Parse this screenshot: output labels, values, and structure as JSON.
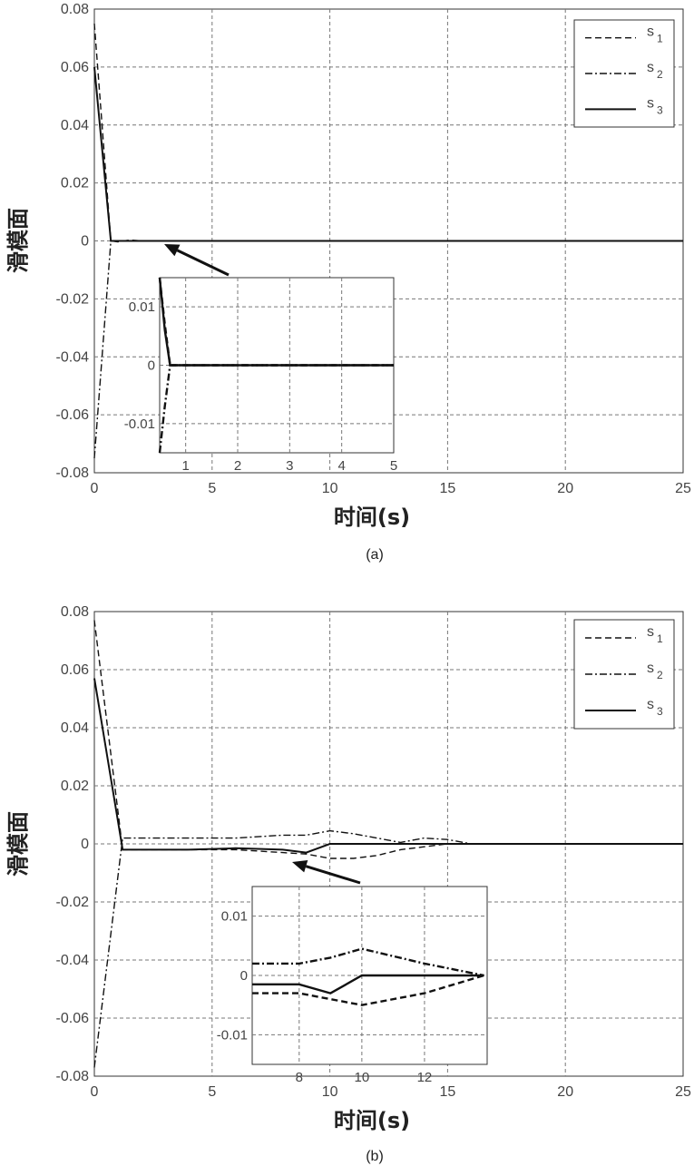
{
  "chart_data": [
    {
      "type": "line",
      "caption": "(a)",
      "xlabel": "时间(s)",
      "ylabel": "滑模面",
      "xlim": [
        0,
        25
      ],
      "ylim": [
        -0.08,
        0.08
      ],
      "xticks": [
        "0",
        "5",
        "10",
        "15",
        "20",
        "25"
      ],
      "yticks": [
        "-0.08",
        "-0.06",
        "-0.04",
        "-0.02",
        "0",
        "0.02",
        "0.04",
        "0.06",
        "0.08"
      ],
      "grid": true,
      "legend_position": "top-right",
      "legend": [
        {
          "symbol": "s",
          "sub": "1",
          "style": "dashed"
        },
        {
          "symbol": "s",
          "sub": "2",
          "style": "dash-dot"
        },
        {
          "symbol": "s",
          "sub": "3",
          "style": "solid"
        }
      ],
      "series": [
        {
          "style": "dashed",
          "x": [
            0,
            0.7,
            1.0,
            1.5,
            2.0,
            25
          ],
          "y": [
            0.075,
            0.0,
            -0.0003,
            0.0003,
            0.0,
            0.0
          ]
        },
        {
          "style": "dash-dot",
          "x": [
            0,
            0.7,
            1.0,
            25
          ],
          "y": [
            -0.075,
            0.0,
            0.0,
            0.0
          ]
        },
        {
          "style": "solid",
          "x": [
            0,
            0.7,
            25
          ],
          "y": [
            0.06,
            0.0,
            0.0
          ]
        }
      ],
      "inset": {
        "xlim": [
          0.5,
          5
        ],
        "ylim": [
          -0.015,
          0.015
        ],
        "xticks": [
          "1",
          "2",
          "3",
          "4",
          "5"
        ],
        "yticks": [
          "-0.01",
          "0",
          "0.01"
        ],
        "series": [
          {
            "style": "dashed",
            "x": [
              0.5,
              0.6,
              0.7,
              5
            ],
            "y": [
              0.015,
              0.007,
              0.0,
              0.0
            ]
          },
          {
            "style": "dash-dot",
            "x": [
              0.5,
              0.6,
              0.7,
              5
            ],
            "y": [
              -0.015,
              -0.007,
              0.0,
              0.0
            ]
          },
          {
            "style": "solid",
            "x": [
              0.5,
              0.6,
              0.7,
              5
            ],
            "y": [
              0.015,
              0.006,
              0.0,
              0.0
            ]
          }
        ]
      }
    },
    {
      "type": "line",
      "caption": "(b)",
      "xlabel": "时间(s)",
      "ylabel": "滑模面",
      "xlim": [
        0,
        25
      ],
      "ylim": [
        -0.08,
        0.08
      ],
      "xticks": [
        "0",
        "5",
        "10",
        "15",
        "20",
        "25"
      ],
      "yticks": [
        "-0.08",
        "-0.06",
        "-0.04",
        "-0.02",
        "0",
        "0.02",
        "0.04",
        "0.06",
        "0.08"
      ],
      "grid": true,
      "legend_position": "top-right",
      "legend": [
        {
          "symbol": "s",
          "sub": "1",
          "style": "dashed"
        },
        {
          "symbol": "s",
          "sub": "2",
          "style": "dash-dot"
        },
        {
          "symbol": "s",
          "sub": "3",
          "style": "solid"
        }
      ],
      "series": [
        {
          "style": "dashed",
          "x": [
            0,
            1.2,
            2,
            4,
            6,
            8,
            9,
            10,
            11,
            12,
            13,
            14,
            15,
            16,
            17,
            25
          ],
          "y": [
            0.077,
            -0.002,
            -0.002,
            -0.002,
            -0.002,
            -0.003,
            -0.0035,
            -0.005,
            -0.005,
            -0.004,
            -0.002,
            -0.001,
            0.0,
            0.0,
            0.0,
            0.0
          ]
        },
        {
          "style": "dash-dot",
          "x": [
            0,
            1.2,
            2,
            4,
            6,
            8,
            9,
            10,
            11,
            12,
            13,
            14,
            15,
            16,
            17,
            25
          ],
          "y": [
            -0.077,
            0.002,
            0.002,
            0.002,
            0.002,
            0.003,
            0.003,
            0.0045,
            0.0035,
            0.002,
            0.0005,
            0.002,
            0.0015,
            0.0,
            0.0,
            0.0
          ]
        },
        {
          "style": "solid",
          "x": [
            0,
            1.2,
            2,
            4,
            6,
            8,
            9,
            10,
            11,
            25
          ],
          "y": [
            0.057,
            -0.002,
            -0.002,
            -0.002,
            -0.0015,
            -0.002,
            -0.003,
            0.0,
            0.0,
            0.0
          ]
        }
      ],
      "inset": {
        "xlim": [
          6.5,
          14
        ],
        "ylim": [
          -0.015,
          0.015
        ],
        "xticks": [
          "8",
          "10",
          "12"
        ],
        "yticks": [
          "-0.01",
          "0",
          "0.01"
        ],
        "series": [
          {
            "style": "dashed",
            "x": [
              6.5,
              8,
              9,
              10,
              12,
              13.9
            ],
            "y": [
              -0.003,
              -0.003,
              -0.004,
              -0.005,
              -0.003,
              0.0
            ]
          },
          {
            "style": "dash-dot",
            "x": [
              6.5,
              8,
              9,
              10,
              12,
              13.9
            ],
            "y": [
              0.002,
              0.002,
              0.003,
              0.0045,
              0.002,
              0.0
            ]
          },
          {
            "style": "solid",
            "x": [
              6.5,
              8,
              9,
              10,
              13.9
            ],
            "y": [
              -0.0015,
              -0.0015,
              -0.003,
              0.0,
              0.0
            ]
          }
        ]
      }
    }
  ]
}
